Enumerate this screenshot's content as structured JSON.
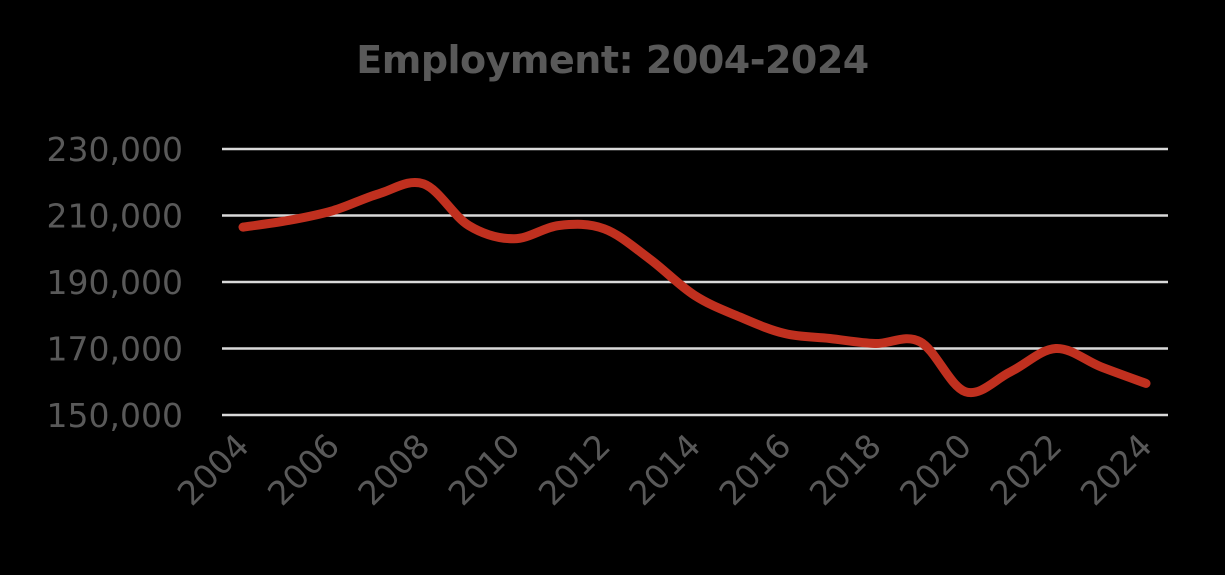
{
  "chart_data": {
    "type": "line",
    "title": "Employment: 2004-2024",
    "xlabel": "",
    "ylabel": "",
    "ylim": [
      150000,
      230000
    ],
    "yticks": [
      150000,
      170000,
      190000,
      210000,
      230000
    ],
    "ytick_labels": [
      "150,000",
      "170,000",
      "190,000",
      "210,000",
      "230,000"
    ],
    "xtick_labels": [
      "2004",
      "2006",
      "2008",
      "2010",
      "2012",
      "2014",
      "2016",
      "2018",
      "2020",
      "2022",
      "2024"
    ],
    "grid": true,
    "legend": "none",
    "x": [
      2004,
      2005,
      2006,
      2007,
      2008,
      2009,
      2010,
      2011,
      2012,
      2013,
      2014,
      2015,
      2016,
      2017,
      2018,
      2019,
      2020,
      2021,
      2022,
      2023,
      2024
    ],
    "series": [
      {
        "name": "Employment",
        "color": "#C0301F",
        "values": [
          206500,
          208500,
          211500,
          216500,
          219500,
          207000,
          203000,
          207000,
          206000,
          197000,
          186000,
          179500,
          174500,
          173000,
          171500,
          172000,
          157000,
          163000,
          170000,
          164500,
          159500
        ]
      }
    ]
  },
  "colors": {
    "background": "#000000",
    "text": "#595959",
    "grid": "#D9D9D9",
    "line": "#C0301F"
  }
}
